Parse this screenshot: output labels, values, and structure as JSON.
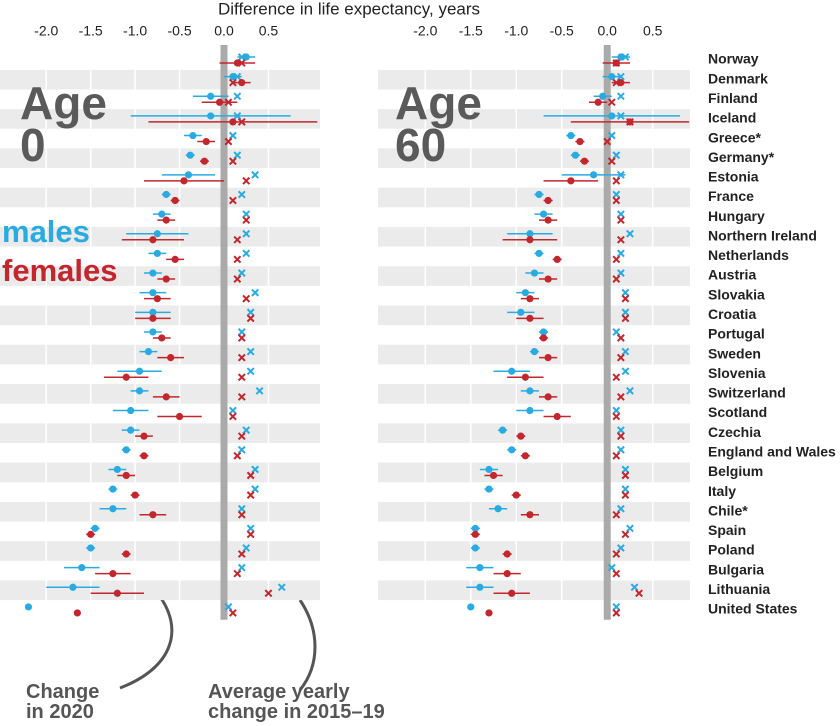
{
  "chart_data": [
    {
      "type": "dot",
      "title": "Age 0",
      "xlabel": "Difference in life expectancy, years",
      "xlim": [
        -2.52,
        1.08
      ],
      "xticks": [
        {
          "value": -2,
          "label": "-2.0"
        },
        -1.5,
        {
          "value": -1,
          "label": "-1.0"
        },
        -0.5,
        {
          "value": 0,
          "label": "0.0"
        },
        0.5
      ],
      "grid": true,
      "annotations": [
        "Change in 2020",
        "Average yearly change in 2015–19"
      ],
      "series": [
        {
          "name": "males",
          "color": "#29abe2",
          "values": [
            0.25,
            0.1,
            -0.15,
            -0.15,
            -0.35,
            -0.38,
            -0.4,
            -0.65,
            -0.7,
            -0.75,
            -0.75,
            -0.8,
            -0.8,
            -0.8,
            -0.8,
            -0.85,
            -0.95,
            -0.95,
            -1.05,
            -1.05,
            -1.1,
            -1.2,
            -1.25,
            -1.25,
            -1.45,
            -1.5,
            -1.6,
            -1.7,
            -2.2
          ],
          "errors": [
            0.1,
            0.1,
            0.2,
            0.9,
            0.1,
            0.05,
            0.3,
            0.05,
            0.1,
            0.35,
            0.1,
            0.1,
            0.15,
            0.2,
            0.1,
            0.1,
            0.25,
            0.1,
            0.2,
            0.1,
            0.05,
            0.1,
            0.05,
            0.15,
            0.05,
            0.05,
            0.2,
            0.3,
            0
          ],
          "avg_values": [
            0.2,
            0.15,
            0.15,
            0.15,
            0.1,
            0.15,
            0.35,
            0.2,
            0.25,
            0.25,
            0.25,
            0.2,
            0.35,
            0.3,
            0.2,
            0.3,
            0.3,
            0.4,
            0.1,
            0.25,
            0.2,
            0.35,
            0.35,
            0.2,
            0.3,
            0.25,
            0.2,
            0.65,
            0.05
          ]
        },
        {
          "name": "females",
          "color": "#c1272d",
          "values": [
            0.15,
            0.2,
            -0.05,
            0.1,
            -0.2,
            -0.22,
            -0.45,
            -0.55,
            -0.65,
            -0.8,
            -0.55,
            -0.65,
            -0.75,
            -0.8,
            -0.7,
            -0.6,
            -1.1,
            -0.65,
            -0.5,
            -0.9,
            -0.9,
            -1.1,
            -1.0,
            -0.8,
            -1.5,
            -1.1,
            -1.25,
            -1.2,
            -1.65
          ],
          "errors": [
            0.2,
            0.1,
            0.2,
            0.95,
            0.1,
            0.05,
            0.45,
            0.05,
            0.1,
            0.35,
            0.1,
            0.1,
            0.15,
            0.2,
            0.1,
            0.15,
            0.25,
            0.15,
            0.25,
            0.1,
            0.05,
            0.1,
            0.05,
            0.15,
            0.05,
            0.05,
            0.2,
            0.3,
            0
          ],
          "avg_values": [
            0.2,
            0.1,
            0.05,
            0.2,
            0.05,
            0.1,
            0.25,
            0.1,
            0.25,
            0.15,
            0.15,
            0.15,
            0.25,
            0.3,
            0.2,
            0.2,
            0.2,
            0.2,
            0.1,
            0.2,
            0.15,
            0.3,
            0.3,
            0.2,
            0.3,
            0.2,
            0.15,
            0.5,
            0.1
          ]
        }
      ]
    },
    {
      "type": "dot",
      "title": "Age 60",
      "xlim": [
        -2.52,
        0.91
      ],
      "xticks": [
        {
          "value": -2,
          "label": "-2.0"
        },
        -1.5,
        {
          "value": -1,
          "label": "-1.0"
        },
        -0.5,
        {
          "value": 0,
          "label": "0.0"
        },
        0.5
      ],
      "grid": true,
      "categories": [
        "Norway",
        "Denmark",
        "Finland",
        "Iceland",
        "Greece*",
        "Germany*",
        "Estonia",
        "France",
        "Hungary",
        "Northern Ireland",
        "Netherlands",
        "Austria",
        "Slovakia",
        "Croatia",
        "Portugal",
        "Sweden",
        "Slovenia",
        "Switzerland",
        "Scotland",
        "Czechia",
        "England and Wales",
        "Belgium",
        "Italy",
        "Chile*",
        "Spain",
        "Poland",
        "Bulgaria",
        "Lithuania",
        "United States"
      ],
      "series": [
        {
          "color": "#29abe2",
          "values": [
            0.15,
            0.05,
            -0.05,
            0.05,
            -0.4,
            -0.35,
            -0.15,
            -0.75,
            -0.7,
            -0.85,
            -0.75,
            -0.8,
            -0.9,
            -0.95,
            -0.7,
            -0.8,
            -1.05,
            -0.85,
            -0.85,
            -1.15,
            -1.05,
            -1.3,
            -1.3,
            -1.2,
            -1.45,
            -1.45,
            -1.4,
            -1.4,
            -1.5
          ],
          "errors": [
            0.1,
            0.1,
            0.1,
            0.75,
            0.05,
            0.05,
            0.35,
            0.05,
            0.1,
            0.25,
            0.05,
            0.1,
            0.1,
            0.15,
            0.05,
            0.05,
            0.2,
            0.1,
            0.15,
            0.05,
            0.05,
            0.1,
            0.05,
            0.1,
            0.05,
            0.05,
            0.15,
            0.15,
            0
          ],
          "avg_values": [
            0.2,
            0.15,
            0.15,
            0.15,
            0.05,
            0.1,
            0.15,
            0.1,
            0.15,
            0.25,
            0.15,
            0.15,
            0.2,
            0.2,
            0.1,
            0.2,
            0.2,
            0.25,
            0.1,
            0.15,
            0.15,
            0.2,
            0.2,
            0.15,
            0.25,
            0.15,
            0.05,
            0.3,
            0.1
          ]
        },
        {
          "color": "#c1272d",
          "values": [
            0.1,
            0.15,
            -0.1,
            0.25,
            -0.3,
            -0.25,
            -0.4,
            -0.65,
            -0.65,
            -0.85,
            -0.55,
            -0.65,
            -0.85,
            -0.85,
            -0.7,
            -0.65,
            -0.9,
            -0.65,
            -0.55,
            -0.95,
            -0.9,
            -1.25,
            -1.0,
            -0.85,
            -1.45,
            -1.1,
            -1.1,
            -1.05,
            -1.3
          ],
          "errors": [
            0.15,
            0.1,
            0.1,
            0.65,
            0.05,
            0.05,
            0.3,
            0.05,
            0.1,
            0.3,
            0.05,
            0.1,
            0.1,
            0.15,
            0.05,
            0.1,
            0.2,
            0.1,
            0.15,
            0.05,
            0.05,
            0.1,
            0.05,
            0.1,
            0.05,
            0.05,
            0.15,
            0.2,
            0
          ],
          "avg_values": [
            0.1,
            0.1,
            0.05,
            0.25,
            0.0,
            0.05,
            0.1,
            0.1,
            0.15,
            0.15,
            0.1,
            0.1,
            0.2,
            0.2,
            0.15,
            0.15,
            0.1,
            0.15,
            0.1,
            0.15,
            0.1,
            0.2,
            0.2,
            0.1,
            0.2,
            0.1,
            0.1,
            0.35,
            0.1
          ]
        }
      ]
    }
  ]
}
